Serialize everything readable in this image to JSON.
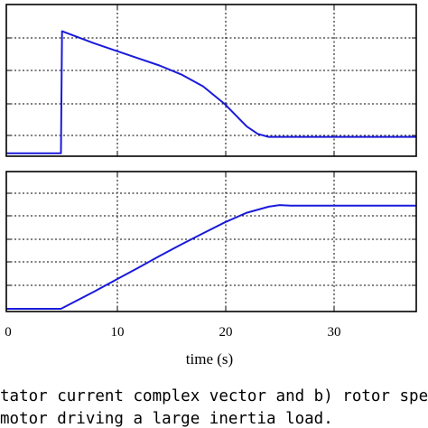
{
  "chart_data": [
    {
      "type": "line",
      "panel": "a",
      "x": [
        0,
        5,
        5.1,
        8,
        10,
        12,
        14,
        16,
        18,
        20,
        22,
        23,
        24,
        26,
        28,
        30,
        32,
        35,
        37.5
      ],
      "series": [
        {
          "color": "#1a1adb",
          "values": [
            0.0,
            0.0,
            4.1,
            3.7,
            3.45,
            3.2,
            2.95,
            2.65,
            2.25,
            1.65,
            0.9,
            0.65,
            0.55,
            0.55,
            0.55,
            0.55,
            0.55,
            0.55,
            0.55
          ]
        }
      ],
      "xlim": [
        0,
        37.5
      ],
      "ylim": [
        -0.1,
        5.0
      ],
      "grid": true
    },
    {
      "type": "line",
      "panel": "b",
      "x": [
        0,
        5,
        8,
        10,
        12,
        14,
        16,
        18,
        20,
        22,
        24,
        25,
        26,
        28,
        30,
        32,
        35,
        37.5
      ],
      "series": [
        {
          "color": "#1a1adb",
          "values": [
            0.0,
            0.0,
            0.62,
            1.05,
            1.48,
            1.92,
            2.34,
            2.75,
            3.15,
            3.5,
            3.72,
            3.78,
            3.76,
            3.76,
            3.76,
            3.76,
            3.76,
            3.76
          ]
        }
      ],
      "xlim": [
        0,
        37.5
      ],
      "ylim": [
        -0.1,
        5.0
      ],
      "xticks": [
        0,
        10,
        20,
        30
      ],
      "xlabel": "time (s)",
      "grid": true
    }
  ],
  "axis": {
    "xtick_labels": [
      "0",
      "10",
      "20",
      "30"
    ],
    "xlabel": "time (s)"
  },
  "caption": {
    "line1": "tator current complex vector and b) rotor spee",
    "line2": "motor driving a large inertia load."
  }
}
